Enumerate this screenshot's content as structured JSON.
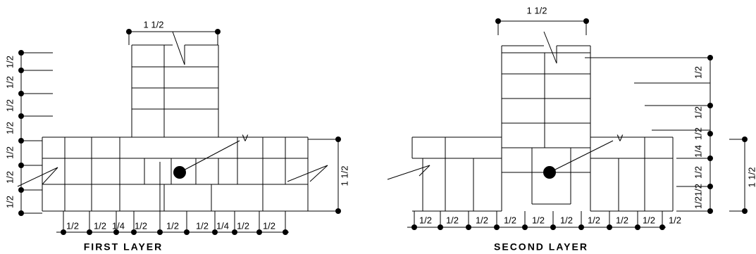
{
  "first_layer": {
    "title": "FIRST LAYER",
    "top_dimension": "1 1/2",
    "marker": "V",
    "left_dimensions": [
      "1/2",
      "1/2",
      "1/2",
      "1/2",
      "1/2",
      "1/2",
      "1/2"
    ],
    "right_dimension": "1 1/2",
    "bottom_dimensions": [
      "1/2",
      "1/2",
      "1/4",
      "1/2",
      "1/2",
      "1/2",
      "1/4",
      "1/2",
      "1/2"
    ]
  },
  "second_layer": {
    "title": "SECOND LAYER",
    "top_dimension": "1 1/2",
    "marker": "V",
    "right_dimensions": [
      "1/2",
      "1/2",
      "1/2",
      "1/4",
      "1/2",
      "1/2",
      "1/2"
    ],
    "far_right_dimension": "1 1/2",
    "bottom_dimensions": [
      "1/2",
      "1/2",
      "1/2",
      "1/2",
      "1/2",
      "1/2",
      "1/2",
      "1/2",
      "1/2",
      "1/2"
    ]
  }
}
